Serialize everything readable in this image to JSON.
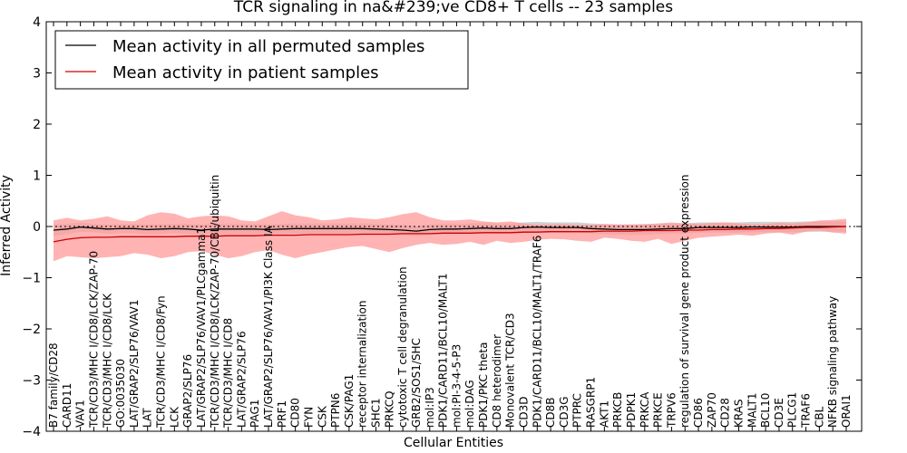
{
  "chart_data": {
    "type": "line",
    "title": "TCR signaling in na&#239;ve CD8+ T cells -- 23 samples",
    "xlabel": "Cellular Entities",
    "ylabel": "Inferred Activity",
    "ylim": [
      -4,
      4
    ],
    "yticks": [
      -4,
      -3,
      -2,
      -1,
      0,
      1,
      2,
      3,
      4
    ],
    "reference_line": 0,
    "legend_position": "top-left",
    "categories": [
      "B7 family/CD28",
      "CARD11",
      "VAV1",
      "TCR/CD3/MHC I/CD8/LCK/ZAP-70",
      "TCR/CD3/MHC I/CD8/LCK",
      "GO:0035030",
      "LAT/GRAP2/SLP76/VAV1",
      "LAT",
      "TCR/CD3/MHC I/CD8/Fyn",
      "LCK",
      "GRAP2/SLP76",
      "LAT/GRAP2/SLP76/VAV1/PLCgamma1",
      "TCR/CD3/MHC I/CD8/LCK/ZAP-70/CBL/ubiquitin",
      "TCR/CD3/MHC I/CD8",
      "LAT/GRAP2/SLP76",
      "PAG1",
      "LAT/GRAP2/SLP76/VAV1/PI3K Class IA",
      "PRF1",
      "CD80",
      "FYN",
      "CSK",
      "PTPN6",
      "CSK/PAG1",
      "receptor internalization",
      "SHC1",
      "PRKCQ",
      "cytotoxic T cell degranulation",
      "GRB2/SOS1/SHC",
      "mol:IP3",
      "PDK1/CARD11/BCL10/MALT1",
      "mol:PI-3-4-5-P3",
      "mol:DAG",
      "PDK1/PKC theta",
      "CD8 heterodimer",
      "Monovalent TCR/CD3",
      "CD3D",
      "PDK1/CARD11/BCL10/MALT1/TRAF6",
      "CD8B",
      "CD3G",
      "PTPRC",
      "RASGRP1",
      "AKT1",
      "PRKCB",
      "PDPK1",
      "PRKCA",
      "PRKCE",
      "TRPV6",
      "regulation of survival gene product expression",
      "CD86",
      "ZAP70",
      "CD28",
      "KRAS",
      "MALT1",
      "BCL10",
      "CD3E",
      "PLCG1",
      "TRAF6",
      "CBL",
      "NFKB signaling pathway",
      "ORAI1"
    ],
    "series": [
      {
        "name": "Mean activity in all permuted samples",
        "color": "#000000",
        "band_color": "#999999",
        "values": [
          -0.07,
          -0.05,
          -0.01,
          -0.03,
          -0.05,
          -0.04,
          -0.04,
          -0.06,
          -0.05,
          -0.04,
          -0.05,
          -0.07,
          -0.05,
          -0.05,
          -0.05,
          -0.05,
          -0.06,
          -0.05,
          -0.04,
          -0.04,
          -0.04,
          -0.04,
          -0.04,
          -0.04,
          -0.05,
          -0.06,
          -0.07,
          -0.09,
          -0.06,
          -0.05,
          -0.05,
          -0.04,
          -0.03,
          -0.04,
          -0.04,
          -0.02,
          -0.01,
          -0.02,
          -0.02,
          -0.02,
          -0.04,
          -0.05,
          -0.06,
          -0.06,
          -0.06,
          -0.05,
          -0.04,
          -0.04,
          -0.02,
          -0.02,
          -0.02,
          -0.02,
          -0.01,
          -0.01,
          -0.01,
          -0.01,
          0.0,
          0.0,
          0.0,
          0.0
        ],
        "band_upper": [
          0.04,
          0.05,
          0.08,
          0.05,
          0.04,
          0.05,
          0.05,
          0.04,
          0.05,
          0.05,
          0.05,
          0.04,
          0.05,
          0.05,
          0.05,
          0.05,
          0.04,
          0.05,
          0.06,
          0.06,
          0.06,
          0.06,
          0.06,
          0.06,
          0.05,
          0.04,
          0.03,
          0.01,
          0.04,
          0.05,
          0.05,
          0.06,
          0.07,
          0.06,
          0.06,
          0.08,
          0.09,
          0.08,
          0.08,
          0.08,
          0.06,
          0.05,
          0.04,
          0.04,
          0.04,
          0.05,
          0.06,
          0.06,
          0.08,
          0.08,
          0.08,
          0.08,
          0.09,
          0.09,
          0.09,
          0.09,
          0.1,
          0.1,
          0.1,
          0.1
        ],
        "band_lower": [
          -0.18,
          -0.15,
          -0.1,
          -0.11,
          -0.14,
          -0.13,
          -0.13,
          -0.16,
          -0.15,
          -0.13,
          -0.15,
          -0.18,
          -0.15,
          -0.15,
          -0.15,
          -0.15,
          -0.16,
          -0.15,
          -0.14,
          -0.14,
          -0.14,
          -0.14,
          -0.14,
          -0.14,
          -0.15,
          -0.16,
          -0.17,
          -0.19,
          -0.16,
          -0.15,
          -0.15,
          -0.14,
          -0.13,
          -0.14,
          -0.14,
          -0.12,
          -0.11,
          -0.12,
          -0.12,
          -0.12,
          -0.14,
          -0.15,
          -0.16,
          -0.16,
          -0.16,
          -0.15,
          -0.14,
          -0.14,
          -0.12,
          -0.12,
          -0.12,
          -0.12,
          -0.11,
          -0.11,
          -0.11,
          -0.11,
          -0.1,
          -0.1,
          -0.1,
          -0.1
        ]
      },
      {
        "name": "Mean activity in patient samples",
        "color": "#cc0000",
        "band_color": "#ff9999",
        "values": [
          -0.3,
          -0.25,
          -0.22,
          -0.21,
          -0.21,
          -0.2,
          -0.2,
          -0.2,
          -0.2,
          -0.2,
          -0.19,
          -0.19,
          -0.19,
          -0.18,
          -0.18,
          -0.18,
          -0.17,
          -0.17,
          -0.17,
          -0.16,
          -0.16,
          -0.16,
          -0.16,
          -0.15,
          -0.15,
          -0.15,
          -0.14,
          -0.14,
          -0.14,
          -0.13,
          -0.13,
          -0.13,
          -0.12,
          -0.12,
          -0.12,
          -0.11,
          -0.11,
          -0.1,
          -0.1,
          -0.1,
          -0.1,
          -0.09,
          -0.09,
          -0.09,
          -0.08,
          -0.08,
          -0.08,
          -0.07,
          -0.07,
          -0.06,
          -0.06,
          -0.05,
          -0.05,
          -0.04,
          -0.04,
          -0.03,
          -0.02,
          -0.02,
          -0.01,
          0.0
        ],
        "band_upper": [
          0.12,
          0.17,
          0.12,
          0.15,
          0.2,
          0.12,
          0.1,
          0.22,
          0.28,
          0.25,
          0.16,
          0.2,
          0.22,
          0.2,
          0.12,
          0.1,
          0.2,
          0.3,
          0.22,
          0.18,
          0.12,
          0.14,
          0.18,
          0.16,
          0.14,
          0.18,
          0.24,
          0.28,
          0.18,
          0.12,
          0.12,
          0.14,
          0.1,
          0.08,
          0.1,
          0.06,
          0.04,
          0.04,
          0.05,
          0.03,
          0.03,
          0.05,
          0.04,
          0.04,
          0.05,
          0.06,
          0.08,
          0.06,
          0.05,
          0.07,
          0.08,
          0.06,
          0.04,
          0.05,
          0.07,
          0.06,
          0.08,
          0.12,
          0.13,
          0.15
        ],
        "band_lower": [
          -0.68,
          -0.58,
          -0.6,
          -0.62,
          -0.6,
          -0.58,
          -0.52,
          -0.55,
          -0.62,
          -0.58,
          -0.5,
          -0.48,
          -0.55,
          -0.62,
          -0.58,
          -0.5,
          -0.46,
          -0.55,
          -0.62,
          -0.55,
          -0.5,
          -0.45,
          -0.4,
          -0.38,
          -0.44,
          -0.5,
          -0.42,
          -0.36,
          -0.32,
          -0.36,
          -0.34,
          -0.3,
          -0.36,
          -0.28,
          -0.32,
          -0.3,
          -0.26,
          -0.24,
          -0.25,
          -0.28,
          -0.3,
          -0.22,
          -0.24,
          -0.28,
          -0.3,
          -0.24,
          -0.34,
          -0.28,
          -0.22,
          -0.2,
          -0.18,
          -0.16,
          -0.18,
          -0.14,
          -0.12,
          -0.16,
          -0.1,
          -0.08,
          -0.12,
          -0.14
        ]
      }
    ]
  }
}
